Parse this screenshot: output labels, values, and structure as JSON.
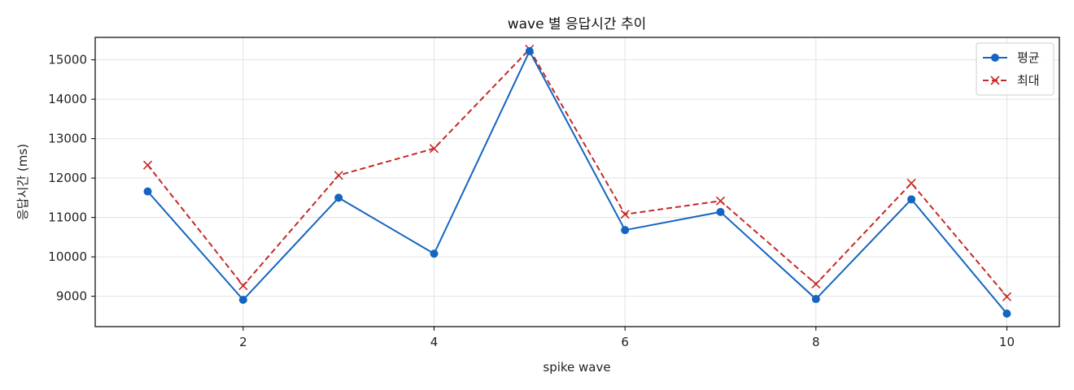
{
  "chart_data": {
    "type": "line",
    "title": "wave 별 응답시간 추이",
    "xlabel": "spike wave",
    "ylabel": "응답시간 (ms)",
    "x": [
      1,
      2,
      3,
      4,
      5,
      6,
      7,
      8,
      9,
      10
    ],
    "xlim": [
      0.45,
      10.55
    ],
    "ylim": [
      8230,
      15570
    ],
    "xticks": [
      2,
      4,
      6,
      8,
      10
    ],
    "yticks": [
      9000,
      10000,
      11000,
      12000,
      13000,
      14000,
      15000
    ],
    "grid": true,
    "legend_position": "top-right",
    "series": [
      {
        "name": "평균",
        "color": "#1565c0",
        "line_style": "solid",
        "marker": "circle",
        "values": [
          11660,
          8910,
          11500,
          10080,
          15220,
          10680,
          11140,
          8930,
          11460,
          8560
        ]
      },
      {
        "name": "최대",
        "color": "#c62828",
        "line_style": "dashed",
        "marker": "x",
        "values": [
          12330,
          9270,
          12070,
          12750,
          15270,
          11080,
          11420,
          9310,
          11870,
          8990
        ]
      }
    ]
  }
}
